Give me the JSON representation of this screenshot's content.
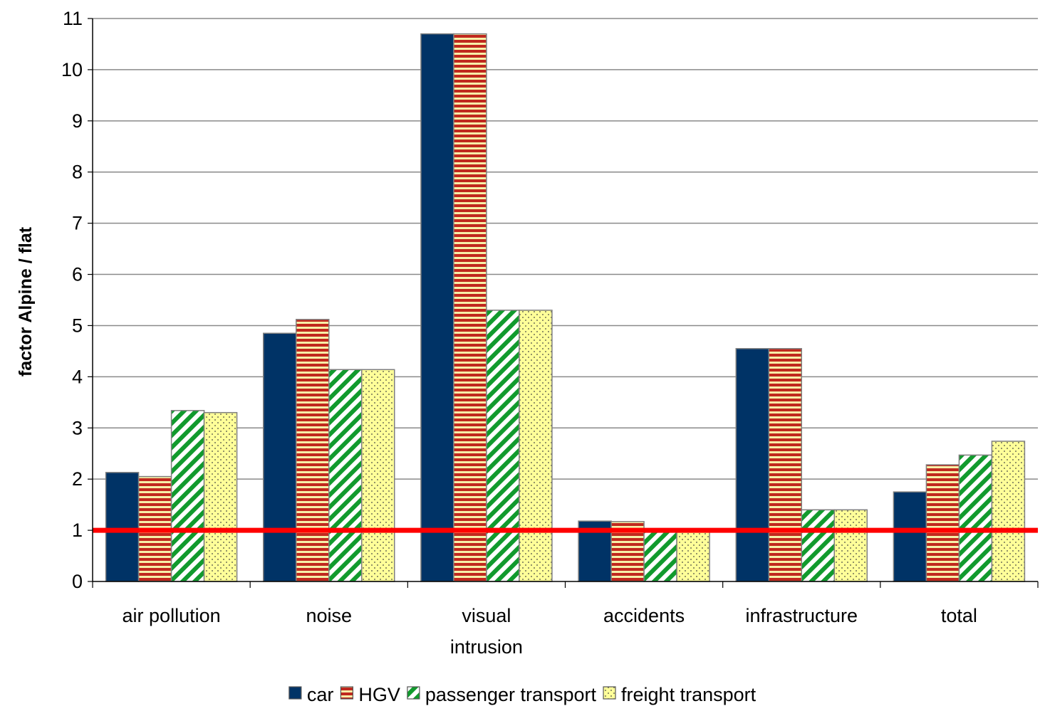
{
  "chart_data": {
    "type": "bar",
    "title": "",
    "xlabel": "",
    "ylabel": "factor Alpine / flat",
    "ylim": [
      0,
      11
    ],
    "yticks": [
      "0",
      "1",
      "2",
      "3",
      "4",
      "5",
      "6",
      "7",
      "8",
      "9",
      "10",
      "11"
    ],
    "grid": true,
    "legend_position": "bottom",
    "reference_line": {
      "y": 1,
      "color": "#ff0000"
    },
    "categories": [
      [
        "air pollution"
      ],
      [
        "noise"
      ],
      [
        "visual",
        "intrusion"
      ],
      [
        "accidents"
      ],
      [
        "infrastructure"
      ],
      [
        "total"
      ]
    ],
    "series": [
      {
        "name": "car",
        "pattern": "solid",
        "color": "#003366",
        "values": [
          2.13,
          4.85,
          10.7,
          1.18,
          4.55,
          1.75
        ]
      },
      {
        "name": "HGV",
        "pattern": "horizontal-stripes",
        "color": "#cc3300",
        "values": [
          2.05,
          5.12,
          10.7,
          1.17,
          4.55,
          2.28
        ]
      },
      {
        "name": "passenger transport",
        "pattern": "diagonal-stripes",
        "color": "#009933",
        "values": [
          3.34,
          4.14,
          5.3,
          1.0,
          1.4,
          2.47
        ]
      },
      {
        "name": "freight transport",
        "pattern": "dots",
        "color": "#ffff99",
        "values": [
          3.3,
          4.14,
          5.3,
          1.0,
          1.4,
          2.74
        ]
      }
    ]
  }
}
